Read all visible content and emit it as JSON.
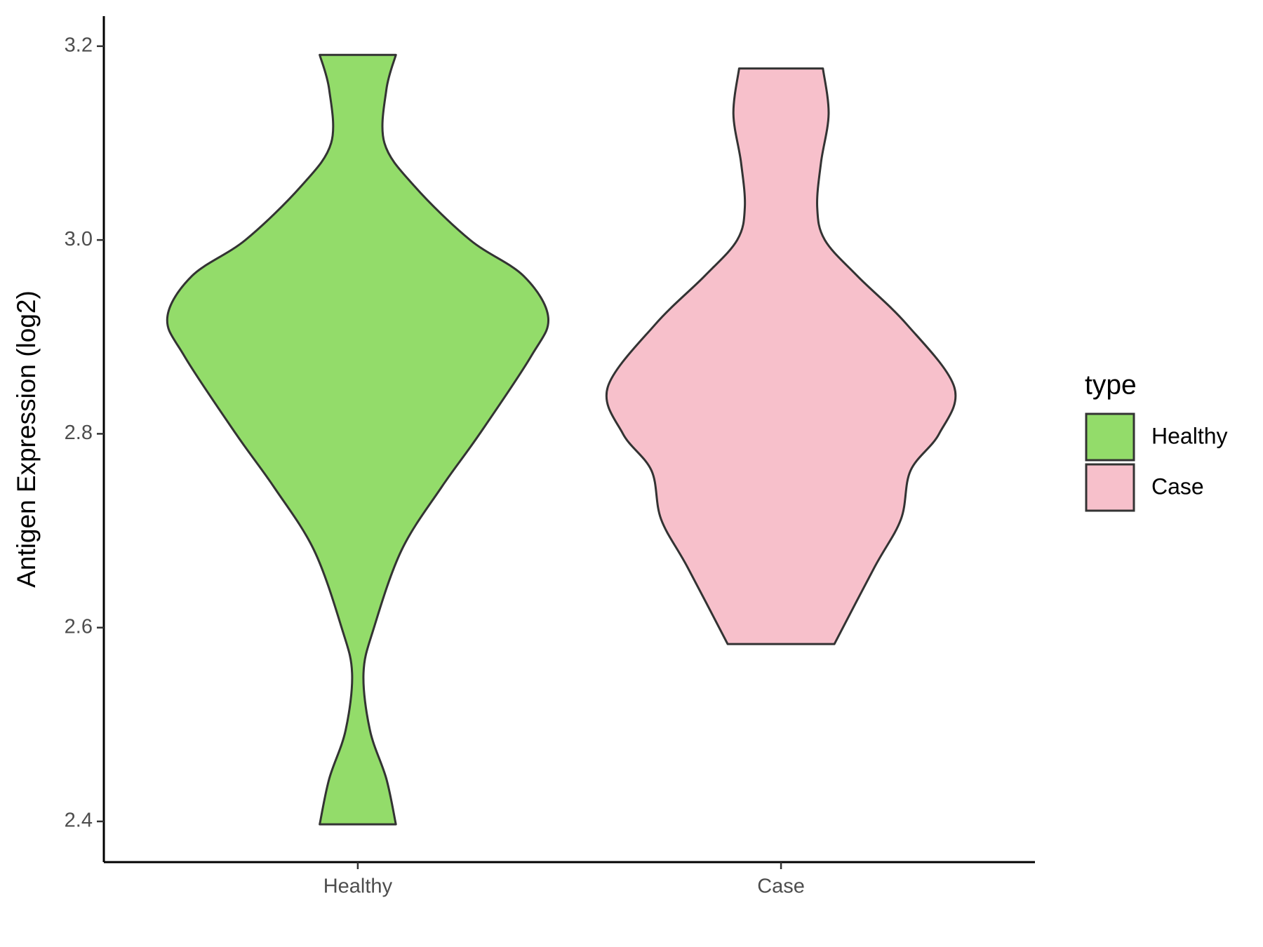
{
  "chart_data": {
    "type": "violin",
    "ylabel": "Antigen Expression (log2)",
    "categories": [
      "Healthy",
      "Case"
    ],
    "ylim": [
      2.358,
      3.231
    ],
    "yticks": [
      2.4,
      2.6,
      2.8,
      {
        "value": 3.0,
        "label": "3.0"
      },
      3.2
    ],
    "legend_title": "type",
    "legend_position": "right",
    "series": [
      {
        "name": "Healthy",
        "color": "#93dc6a",
        "y": [
          3.191,
          3.155,
          3.1,
          3.055,
          3.0,
          2.963,
          2.92,
          2.88,
          2.8,
          2.745,
          2.68,
          2.6,
          2.553,
          2.494,
          2.444,
          2.397
        ],
        "density": [
          0.2,
          0.15,
          0.14,
          0.3,
          0.59,
          0.87,
          1,
          0.91,
          0.64,
          0.44,
          0.23,
          0.085,
          0.03,
          0.064,
          0.15,
          0.2
        ]
      },
      {
        "name": "Case",
        "color": "#f7c0cb",
        "y": [
          3.177,
          3.13,
          3.08,
          3.034,
          3.0,
          2.963,
          2.913,
          2.848,
          2.8,
          2.762,
          2.712,
          2.662,
          2.583
        ],
        "density": [
          0.22,
          0.25,
          0.21,
          0.19,
          0.23,
          0.4,
          0.66,
          0.91,
          0.83,
          0.68,
          0.63,
          0.49,
          0.28
        ]
      }
    ]
  }
}
